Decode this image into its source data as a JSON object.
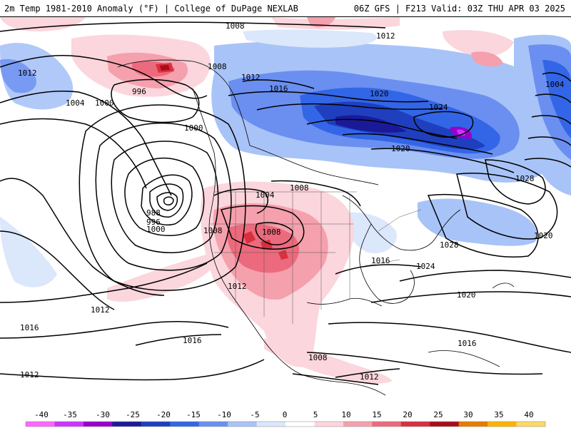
{
  "header": {
    "left_text": "2m Temp 1981-2010 Anomaly (°F) | College of DuPage NEXLAB",
    "right_text": "06Z GFS | F213 Valid: 03Z THU APR 03 2025"
  },
  "legend": {
    "ticks": [
      "-40",
      "-35",
      "-30",
      "-25",
      "-20",
      "-15",
      "-10",
      "-5",
      "0",
      "5",
      "10",
      "15",
      "20",
      "25",
      "30",
      "35",
      "40"
    ],
    "colors": [
      "#ff66ff",
      "#cc33ff",
      "#9900cc",
      "#1a1a99",
      "#1f3fbf",
      "#3366e6",
      "#6b8ff0",
      "#a8c3f7",
      "#dbe7fb",
      "#ffffff",
      "#fbd6dc",
      "#f5a0ad",
      "#ec6a7d",
      "#d9303e",
      "#a80d1c",
      "#e87a00",
      "#ffb300",
      "#ffd966"
    ]
  },
  "map": {
    "isobar_labels": [
      {
        "id": "p1",
        "text": "1008"
      },
      {
        "id": "p2",
        "text": "1012"
      },
      {
        "id": "p3",
        "text": "1012"
      },
      {
        "id": "p4",
        "text": "1004"
      },
      {
        "id": "p5",
        "text": "1000"
      },
      {
        "id": "p6",
        "text": "996"
      },
      {
        "id": "p7",
        "text": "1008"
      },
      {
        "id": "p8",
        "text": "1012"
      },
      {
        "id": "p9",
        "text": "1016"
      },
      {
        "id": "p10",
        "text": "1020"
      },
      {
        "id": "p11",
        "text": "1024"
      },
      {
        "id": "p12",
        "text": "1004"
      },
      {
        "id": "p13",
        "text": "1000"
      },
      {
        "id": "p14",
        "text": "1020"
      },
      {
        "id": "p15",
        "text": "1028"
      },
      {
        "id": "p16",
        "text": "988"
      },
      {
        "id": "p17",
        "text": "996"
      },
      {
        "id": "p18",
        "text": "1000"
      },
      {
        "id": "p19",
        "text": "1004"
      },
      {
        "id": "p20",
        "text": "1008"
      },
      {
        "id": "p21",
        "text": "1008"
      },
      {
        "id": "p22",
        "text": "1008"
      },
      {
        "id": "p23",
        "text": "1020"
      },
      {
        "id": "p24",
        "text": "1028"
      },
      {
        "id": "p25",
        "text": "1016"
      },
      {
        "id": "p26",
        "text": "1024"
      },
      {
        "id": "p27",
        "text": "1012"
      },
      {
        "id": "p28",
        "text": "1012"
      },
      {
        "id": "p29",
        "text": "1020"
      },
      {
        "id": "p30",
        "text": "1016"
      },
      {
        "id": "p31",
        "text": "1016"
      },
      {
        "id": "p32",
        "text": "1012"
      },
      {
        "id": "p33",
        "text": "1016"
      },
      {
        "id": "p34",
        "text": "1008"
      },
      {
        "id": "p35",
        "text": "1012"
      }
    ]
  }
}
